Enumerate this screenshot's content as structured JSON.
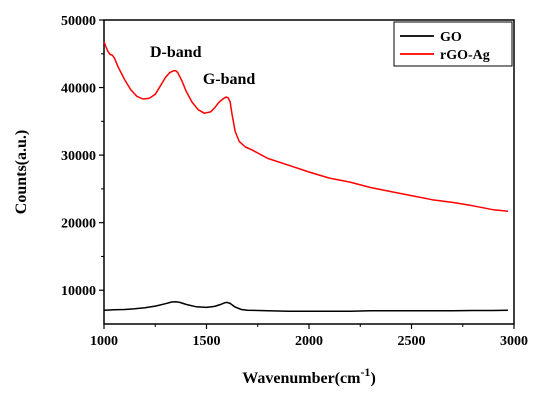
{
  "chart_data": {
    "type": "line",
    "title": "",
    "xlabel": "Wavenumber(cm",
    "xlabel_sup": "-1",
    "xlabel_close": ")",
    "ylabel": "Counts(a.u.)",
    "xlim": [
      1000,
      3000
    ],
    "ylim": [
      5000,
      50000
    ],
    "xticks": [
      1000,
      1500,
      2000,
      2500,
      3000
    ],
    "yticks": [
      10000,
      20000,
      30000,
      40000,
      50000
    ],
    "grid": false,
    "legend_position": "top-right",
    "annotations": [
      {
        "text": "D-band",
        "x": 1350,
        "y": 44500
      },
      {
        "text": "G-band",
        "x": 1610,
        "y": 40500
      }
    ],
    "series": [
      {
        "name": "GO",
        "color": "#000000",
        "x": [
          1000,
          1050,
          1100,
          1150,
          1200,
          1250,
          1300,
          1330,
          1350,
          1370,
          1400,
          1450,
          1500,
          1540,
          1570,
          1590,
          1600,
          1615,
          1640,
          1670,
          1700,
          1800,
          1900,
          2000,
          2100,
          2200,
          2300,
          2400,
          2500,
          2600,
          2700,
          2800,
          2900,
          2970
        ],
        "y": [
          7050,
          7100,
          7150,
          7250,
          7400,
          7650,
          8000,
          8250,
          8300,
          8200,
          7900,
          7550,
          7450,
          7600,
          7900,
          8150,
          8200,
          8050,
          7500,
          7150,
          7050,
          6950,
          6900,
          6900,
          6900,
          6900,
          6950,
          6950,
          6950,
          6950,
          6950,
          7000,
          7000,
          7050
        ]
      },
      {
        "name": "rGO-Ag",
        "color": "#ff0000",
        "x": [
          1000,
          1010,
          1020,
          1030,
          1040,
          1050,
          1070,
          1100,
          1130,
          1160,
          1190,
          1220,
          1250,
          1280,
          1300,
          1320,
          1340,
          1350,
          1360,
          1380,
          1400,
          1430,
          1460,
          1490,
          1520,
          1540,
          1560,
          1580,
          1595,
          1605,
          1615,
          1625,
          1640,
          1660,
          1690,
          1720,
          1800,
          1900,
          2000,
          2100,
          2200,
          2300,
          2400,
          2500,
          2600,
          2700,
          2800,
          2900,
          2970
        ],
        "y": [
          46800,
          46000,
          45300,
          44900,
          44800,
          44400,
          43000,
          41200,
          39700,
          38700,
          38300,
          38400,
          39000,
          40500,
          41500,
          42200,
          42500,
          42500,
          42200,
          41000,
          39500,
          37800,
          36700,
          36200,
          36400,
          37000,
          37800,
          38300,
          38600,
          38500,
          37900,
          36000,
          33500,
          32000,
          31200,
          30800,
          29500,
          28500,
          27500,
          26600,
          26000,
          25200,
          24600,
          24000,
          23400,
          23000,
          22500,
          21900,
          21700
        ]
      }
    ]
  }
}
